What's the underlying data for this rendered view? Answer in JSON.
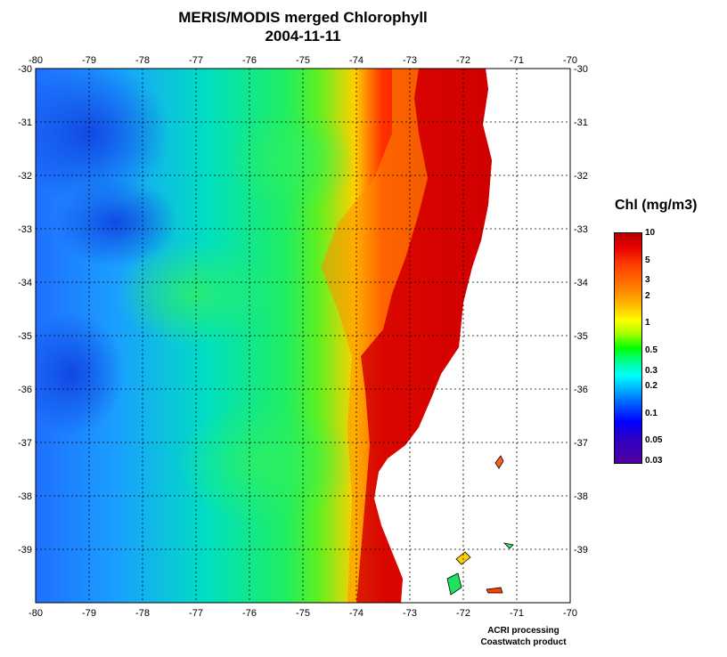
{
  "title": {
    "line1": "MERIS/MODIS merged Chlorophyll",
    "line2": "2004-11-11"
  },
  "map": {
    "lon_ticks": [
      "-80",
      "-79",
      "-78",
      "-77",
      "-76",
      "-75",
      "-74",
      "-73",
      "-72",
      "-71",
      "-70"
    ],
    "lat_ticks": [
      "-30",
      "-31",
      "-32",
      "-33",
      "-34",
      "-35",
      "-36",
      "-37",
      "-38",
      "-39"
    ],
    "lon_range": [
      -80,
      -70
    ],
    "lat_range": [
      -40,
      -30
    ],
    "grid": "dotted"
  },
  "colorbar": {
    "title": "Chl (mg/m3)",
    "labels": [
      "10",
      "5",
      "3",
      "2",
      "1",
      "0.5",
      "0.3",
      "0.2",
      "0.1",
      "0.05",
      "0.03"
    ],
    "colors": {
      "high": "#b30000",
      "mid": "#00ff00",
      "low": "#5000a0"
    }
  },
  "credits": {
    "line1": "ACRI processing",
    "line2": "Coastwatch product"
  }
}
